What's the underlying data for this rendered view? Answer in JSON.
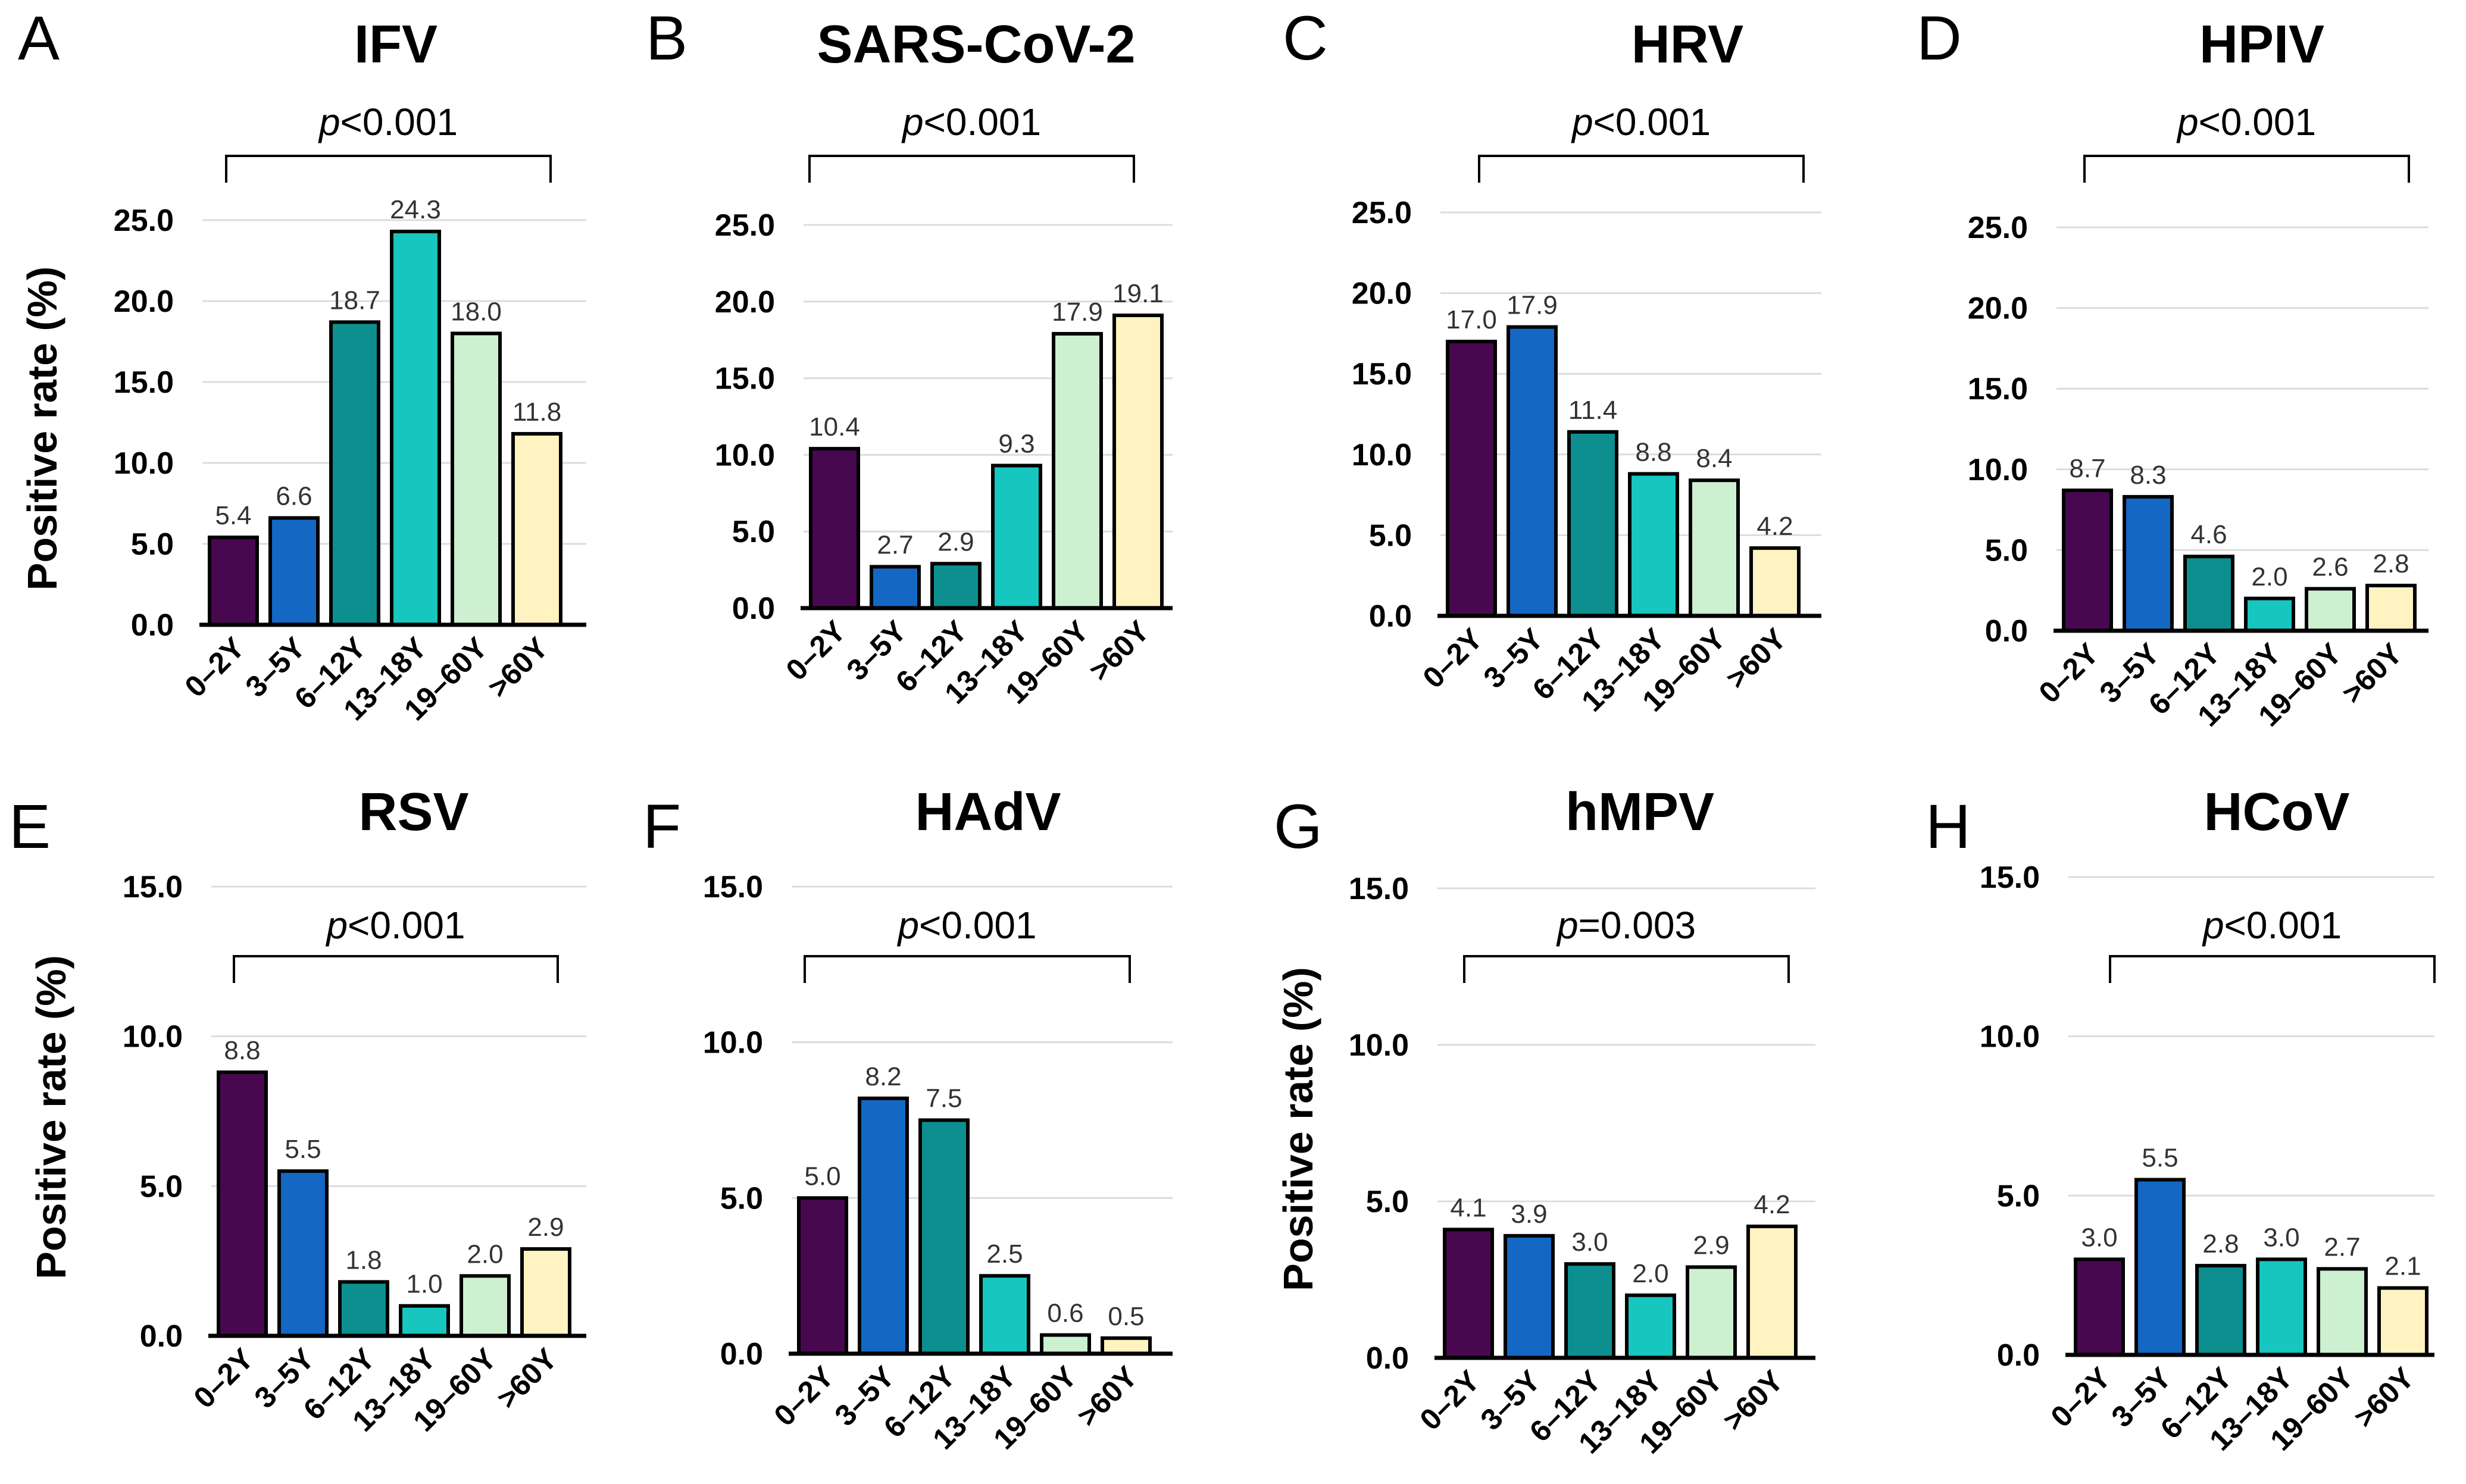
{
  "figure": {
    "ylabel": "Positive rate (%)",
    "colors": [
      "#48084f",
      "#1468c4",
      "#0e8f8f",
      "#16c6bf",
      "#cdf0d0",
      "#fff3c2"
    ],
    "age_colors_alt": [
      "#48084f",
      "#1468c4",
      "#0e8f8f",
      "#16c6bf",
      "#cdf0d0",
      "#ffffd9"
    ]
  },
  "chart_data": [
    {
      "type": "bar",
      "letter": "A",
      "title": "IFV",
      "categories": [
        "0–2Y",
        "3–5Y",
        "6–12Y",
        "13–18Y",
        "19–60Y",
        ">60Y"
      ],
      "values": [
        5.4,
        6.6,
        18.7,
        24.3,
        18.0,
        11.8
      ],
      "labels": [
        "5.4",
        "6.6",
        "18.7",
        "24.3",
        "18.0",
        "11.8"
      ],
      "ylim": [
        0,
        25
      ],
      "yticks": [
        "0.0",
        "5.0",
        "10.0",
        "15.0",
        "20.0",
        "25.0"
      ],
      "p_prefix": "p",
      "p_rest": "<0.001",
      "ylabel": "Positive rate (%)"
    },
    {
      "type": "bar",
      "letter": "B",
      "title": "SARS-CoV-2",
      "categories": [
        "0–2Y",
        "3–5Y",
        "6–12Y",
        "13–18Y",
        "19–60Y",
        ">60Y"
      ],
      "values": [
        10.4,
        2.7,
        2.9,
        9.3,
        17.9,
        19.1
      ],
      "labels": [
        "10.4",
        "2.7",
        "2.9",
        "9.3",
        "17.9",
        "19.1"
      ],
      "ylim": [
        0,
        25
      ],
      "yticks": [
        "0.0",
        "5.0",
        "10.0",
        "15.0",
        "20.0",
        "25.0"
      ],
      "p_prefix": "p",
      "p_rest": "<0.001"
    },
    {
      "type": "bar",
      "letter": "C",
      "title": "HRV",
      "categories": [
        "0–2Y",
        "3–5Y",
        "6–12Y",
        "13–18Y",
        "19–60Y",
        ">60Y"
      ],
      "values": [
        17.0,
        17.9,
        11.4,
        8.8,
        8.4,
        4.2
      ],
      "labels": [
        "17.0",
        "17.9",
        "11.4",
        "8.8",
        "8.4",
        "4.2"
      ],
      "ylim": [
        0,
        25
      ],
      "yticks": [
        "0.0",
        "5.0",
        "10.0",
        "15.0",
        "20.0",
        "25.0"
      ],
      "p_prefix": "p",
      "p_rest": "<0.001"
    },
    {
      "type": "bar",
      "letter": "D",
      "title": "HPIV",
      "categories": [
        "0–2Y",
        "3–5Y",
        "6–12Y",
        "13–18Y",
        "19–60Y",
        ">60Y"
      ],
      "values": [
        8.7,
        8.3,
        4.6,
        2.0,
        2.6,
        2.8
      ],
      "labels": [
        "8.7",
        "8.3",
        "4.6",
        "2.0",
        "2.6",
        "2.8"
      ],
      "ylim": [
        0,
        25
      ],
      "yticks": [
        "0.0",
        "5.0",
        "10.0",
        "15.0",
        "20.0",
        "25.0"
      ],
      "p_prefix": "p",
      "p_rest": "<0.001"
    },
    {
      "type": "bar",
      "letter": "E",
      "title": "RSV",
      "categories": [
        "0–2Y",
        "3–5Y",
        "6–12Y",
        "13–18Y",
        "19–60Y",
        ">60Y"
      ],
      "values": [
        8.8,
        5.5,
        1.8,
        1.0,
        2.0,
        2.9
      ],
      "labels": [
        "8.8",
        "5.5",
        "1.8",
        "1.0",
        "2.0",
        "2.9"
      ],
      "ylim": [
        0,
        15
      ],
      "yticks": [
        "0.0",
        "5.0",
        "10.0",
        "15.0"
      ],
      "p_prefix": "p",
      "p_rest": "<0.001",
      "ylabel": "Positive rate (%)"
    },
    {
      "type": "bar",
      "letter": "F",
      "title": "HAdV",
      "categories": [
        "0–2Y",
        "3–5Y",
        "6–12Y",
        "13–18Y",
        "19–60Y",
        ">60Y"
      ],
      "values": [
        5.0,
        8.2,
        7.5,
        2.5,
        0.6,
        0.5
      ],
      "labels": [
        "5.0",
        "8.2",
        "7.5",
        "2.5",
        "0.6",
        "0.5"
      ],
      "ylim": [
        0,
        15
      ],
      "yticks": [
        "0.0",
        "5.0",
        "10.0",
        "15.0"
      ],
      "p_prefix": "p",
      "p_rest": "<0.001"
    },
    {
      "type": "bar",
      "letter": "G",
      "title": "hMPV",
      "categories": [
        "0–2Y",
        "3–5Y",
        "6–12Y",
        "13–18Y",
        "19–60Y",
        ">60Y"
      ],
      "values": [
        4.1,
        3.9,
        3.0,
        2.0,
        2.9,
        4.2
      ],
      "labels": [
        "4.1",
        "3.9",
        "3.0",
        "2.0",
        "2.9",
        "4.2"
      ],
      "ylim": [
        0,
        15
      ],
      "yticks": [
        "0.0",
        "5.0",
        "10.0",
        "15.0"
      ],
      "p_prefix": "p",
      "p_rest": "=0.003",
      "ylabel": "Positive rate (%)"
    },
    {
      "type": "bar",
      "letter": "H",
      "title": "HCoV",
      "categories": [
        "0–2Y",
        "3–5Y",
        "6–12Y",
        "13–18Y",
        "19–60Y",
        ">60Y"
      ],
      "values": [
        3.0,
        5.5,
        2.8,
        3.0,
        2.7,
        2.1
      ],
      "labels": [
        "3.0",
        "5.5",
        "2.8",
        "3.0",
        "2.7",
        "2.1"
      ],
      "ylim": [
        0,
        15
      ],
      "yticks": [
        "0.0",
        "5.0",
        "10.0",
        "15.0"
      ],
      "p_prefix": "p",
      "p_rest": "<0.001"
    }
  ]
}
